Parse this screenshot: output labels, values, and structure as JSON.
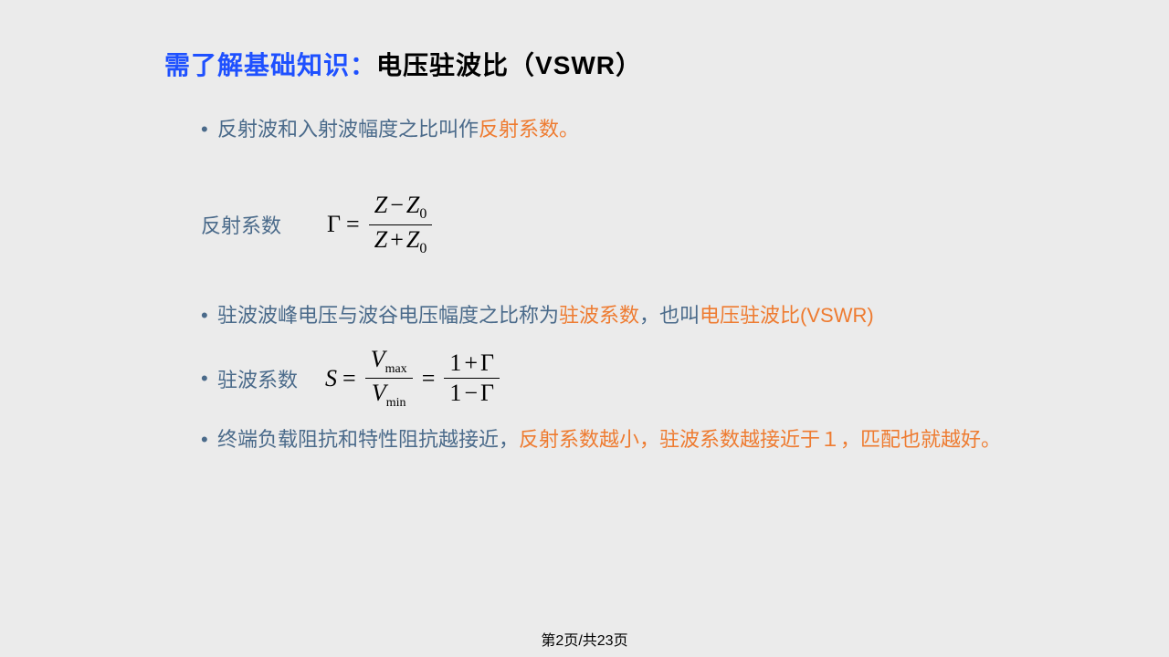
{
  "title": {
    "blue": "需了解基础知识：",
    "black": "电压驻波比（VSWR）"
  },
  "bullets": {
    "b1_pre": "反射波和入射波幅度之比叫作",
    "b1_orange": "反射系数。",
    "label1": "反射系数",
    "b2_pre": "驻波波峰电压与波谷电压幅度之比称为",
    "b2_orange1": "驻波系数",
    "b2_mid": "，也叫",
    "b2_orange2": "电压驻波比(VSWR)",
    "label2": "驻波系数",
    "b3_pre": "终端负载阻抗和特性阻抗越接近，",
    "b3_orange": "反射系数越小，驻波系数越接近于１，匹配也就越好。"
  },
  "formula1": {
    "lhs": "Γ",
    "num_a": "Z",
    "num_op": "−",
    "num_b": "Z",
    "num_sub": "0",
    "den_a": "Z",
    "den_op": "+",
    "den_b": "Z",
    "den_sub": "0"
  },
  "formula2": {
    "lhs": "S",
    "f1_num": "V",
    "f1_num_sub": "max",
    "f1_den": "V",
    "f1_den_sub": "min",
    "f2_num_a": "1",
    "f2_num_op": "+",
    "f2_num_b": "Γ",
    "f2_den_a": "1",
    "f2_den_op": "−",
    "f2_den_b": "Γ"
  },
  "footer": "第2页/共23页",
  "colors": {
    "blue": "#1e50ff",
    "orange": "#ee7b30",
    "bodytext": "#4a6a8a",
    "background": "#ebebeb"
  },
  "fonts": {
    "title_size": 28,
    "body_size": 22,
    "formula_size": 26
  }
}
